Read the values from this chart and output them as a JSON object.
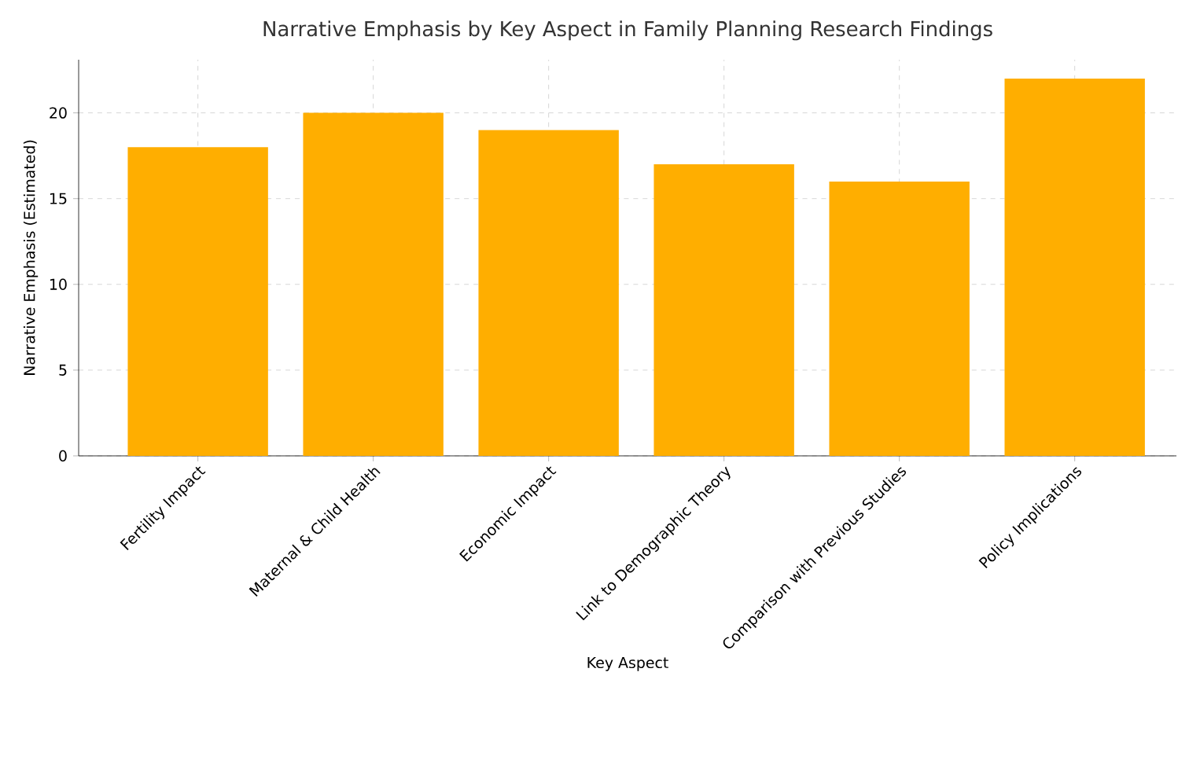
{
  "chart_data": {
    "type": "bar",
    "title": "Narrative Emphasis by Key Aspect in Family Planning Research Findings",
    "xlabel": "Key Aspect",
    "ylabel": "Narrative Emphasis (Estimated)",
    "categories": [
      "Fertility Impact",
      "Maternal & Child Health",
      "Economic Impact",
      "Link to Demographic Theory",
      "Comparison with Previous Studies",
      "Policy Implications"
    ],
    "values": [
      18,
      20,
      19,
      17,
      16,
      22
    ],
    "color": "#ffae00",
    "ylim": [
      0,
      23.1
    ],
    "yticks": [
      0,
      5,
      10,
      15,
      20
    ],
    "grid": true
  }
}
